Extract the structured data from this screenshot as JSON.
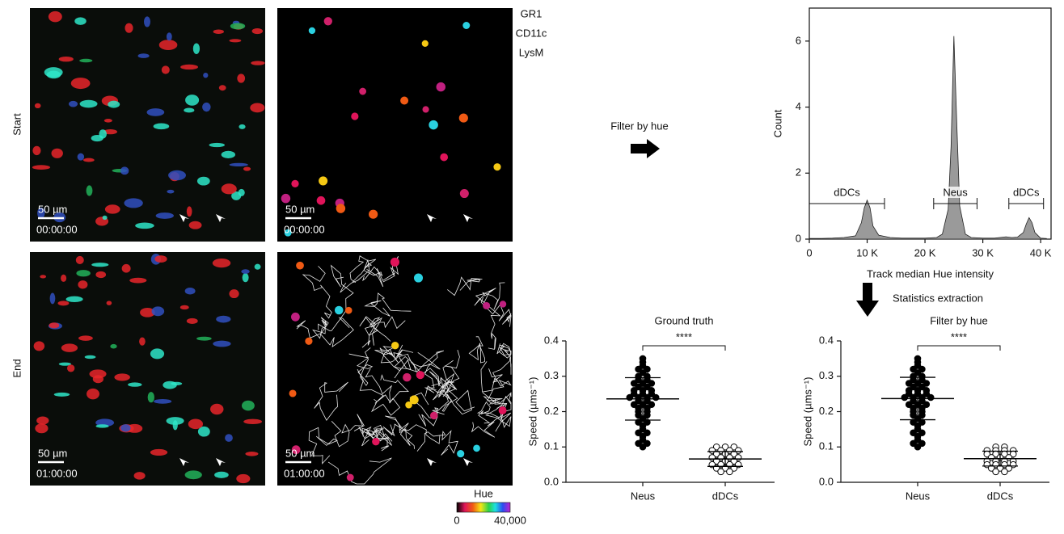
{
  "panels": {
    "row_labels": [
      "Start",
      "End"
    ],
    "channel_legend": [
      {
        "name": "GR1",
        "color": "#22b35a"
      },
      {
        "name": "CD11c",
        "color": "#e8252a"
      },
      {
        "name": "LysM",
        "color": "#3b3fa8"
      }
    ],
    "scale_bar": "50 µm",
    "timestamps": [
      "00:00:00",
      "00:00:00",
      "01:00:00",
      "01:00:00"
    ],
    "hue_bar": {
      "title": "Hue",
      "min_label": "0",
      "max_label": "40,000"
    }
  },
  "arrows": {
    "filter": "Filter by hue",
    "stats": "Statistics extraction"
  },
  "chart_data": [
    {
      "type": "area",
      "color": "#9a9a9a",
      "x": [
        0,
        2000,
        4000,
        6000,
        8000,
        9000,
        9500,
        10000,
        10500,
        11000,
        12000,
        14000,
        16000,
        18000,
        20000,
        22000,
        23000,
        24000,
        24500,
        25000,
        25500,
        26000,
        27000,
        28000,
        30000,
        32000,
        34000,
        35000,
        36000,
        37000,
        37500,
        38000,
        38500,
        39000,
        40000,
        41000
      ],
      "values": [
        0.02,
        0.02,
        0.03,
        0.05,
        0.1,
        0.5,
        0.95,
        1.18,
        0.95,
        0.4,
        0.12,
        0.05,
        0.03,
        0.03,
        0.03,
        0.05,
        0.15,
        0.9,
        2.8,
        6.15,
        3.5,
        1.0,
        0.15,
        0.05,
        0.03,
        0.03,
        0.07,
        0.05,
        0.06,
        0.2,
        0.45,
        0.65,
        0.5,
        0.2,
        0.03,
        0.02
      ],
      "xlim": [
        0,
        41800
      ],
      "ylim": [
        0,
        7
      ],
      "xticks": [
        0,
        {
          "value": 10000,
          "label": "10 K"
        },
        {
          "value": 20000,
          "label": "20 K"
        },
        {
          "value": 30000,
          "label": "30 K"
        },
        {
          "value": 40000,
          "label": "40 K"
        }
      ],
      "yticks": [
        0,
        2,
        4,
        6
      ],
      "x_label": "Track median Hue intensity",
      "y_label": "Count",
      "gates": [
        {
          "label": "dDCs",
          "range": [
            0,
            13000
          ]
        },
        {
          "label": "Neus",
          "range": [
            21500,
            29000
          ]
        },
        {
          "label": "dDCs",
          "range": [
            34500,
            40500
          ]
        }
      ]
    },
    {
      "type": "dot",
      "title": "Ground truth",
      "significance": "****",
      "y_label": "Speed (µms⁻¹)",
      "categories": [
        "Neus",
        "dDCs"
      ],
      "ylim": [
        0,
        0.4
      ],
      "yticks": [
        {
          "value": 0,
          "label": "0.0"
        },
        0.1,
        0.2,
        0.3,
        0.4
      ],
      "groups": [
        {
          "filled": true,
          "mean": 0.236,
          "sd": 0.06,
          "values": [
            0.35,
            0.34,
            0.33,
            0.32,
            0.32,
            0.31,
            0.3,
            0.3,
            0.29,
            0.29,
            0.28,
            0.28,
            0.28,
            0.27,
            0.27,
            0.26,
            0.26,
            0.26,
            0.25,
            0.25,
            0.25,
            0.24,
            0.24,
            0.24,
            0.24,
            0.23,
            0.23,
            0.22,
            0.22,
            0.22,
            0.21,
            0.21,
            0.2,
            0.2,
            0.19,
            0.19,
            0.18,
            0.17,
            0.17,
            0.16,
            0.15,
            0.14,
            0.14,
            0.13,
            0.12,
            0.11,
            0.11,
            0.1
          ]
        },
        {
          "filled": false,
          "mean": 0.066,
          "sd": 0.021,
          "values": [
            0.1,
            0.1,
            0.1,
            0.09,
            0.09,
            0.09,
            0.09,
            0.08,
            0.08,
            0.08,
            0.07,
            0.07,
            0.07,
            0.07,
            0.06,
            0.06,
            0.06,
            0.05,
            0.05,
            0.05,
            0.05,
            0.04,
            0.04,
            0.04,
            0.03,
            0.03
          ]
        }
      ]
    },
    {
      "type": "dot",
      "title": "Filter by hue",
      "significance": "****",
      "y_label": "Speed (µms⁻¹)",
      "categories": [
        "Neus",
        "dDCs"
      ],
      "ylim": [
        0,
        0.4
      ],
      "yticks": [
        {
          "value": 0,
          "label": "0.0"
        },
        0.1,
        0.2,
        0.3,
        0.4
      ],
      "groups": [
        {
          "filled": true,
          "mean": 0.237,
          "sd": 0.06,
          "values": [
            0.35,
            0.34,
            0.33,
            0.32,
            0.32,
            0.31,
            0.3,
            0.3,
            0.29,
            0.29,
            0.28,
            0.28,
            0.28,
            0.27,
            0.27,
            0.26,
            0.26,
            0.26,
            0.25,
            0.25,
            0.25,
            0.24,
            0.24,
            0.24,
            0.24,
            0.23,
            0.23,
            0.22,
            0.22,
            0.22,
            0.21,
            0.21,
            0.2,
            0.2,
            0.19,
            0.19,
            0.18,
            0.17,
            0.17,
            0.16,
            0.15,
            0.14,
            0.14,
            0.13,
            0.12,
            0.11,
            0.11,
            0.1
          ]
        },
        {
          "filled": false,
          "mean": 0.067,
          "sd": 0.021,
          "values": [
            0.1,
            0.1,
            0.09,
            0.09,
            0.09,
            0.09,
            0.08,
            0.08,
            0.08,
            0.08,
            0.07,
            0.07,
            0.07,
            0.06,
            0.06,
            0.06,
            0.06,
            0.05,
            0.05,
            0.05,
            0.05,
            0.04,
            0.04,
            0.04,
            0.03,
            0.03
          ]
        }
      ]
    }
  ]
}
